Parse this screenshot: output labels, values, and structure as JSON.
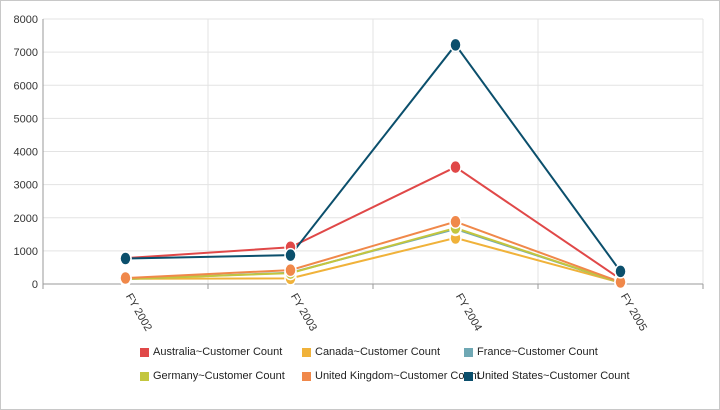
{
  "chart_data": {
    "type": "line",
    "categories": [
      "FY 2002",
      "FY 2003",
      "FY 2004",
      "FY 2005"
    ],
    "ylim": [
      0,
      8000
    ],
    "yticks": [
      0,
      1000,
      2000,
      3000,
      4000,
      5000,
      6000,
      7000,
      8000
    ],
    "grid": true,
    "legend_position": "bottom",
    "series": [
      {
        "name": "Australia~Customer Count",
        "color": "#e04848",
        "values": [
          780,
          1110,
          3530,
          150
        ]
      },
      {
        "name": "Canada~Customer Count",
        "color": "#f0b23a",
        "values": [
          160,
          170,
          1390,
          40
        ]
      },
      {
        "name": "France~Customer Count",
        "color": "#6fa8b4",
        "values": [
          150,
          340,
          1660,
          40
        ]
      },
      {
        "name": "Germany~Customer Count",
        "color": "#c3c63e",
        "values": [
          150,
          330,
          1690,
          40
        ]
      },
      {
        "name": "United Kingdom~Customer Count",
        "color": "#f0884a",
        "values": [
          180,
          420,
          1880,
          60
        ]
      },
      {
        "name": "United States~Customer Count",
        "color": "#0b4f6c",
        "values": [
          770,
          870,
          7220,
          380
        ]
      }
    ]
  }
}
